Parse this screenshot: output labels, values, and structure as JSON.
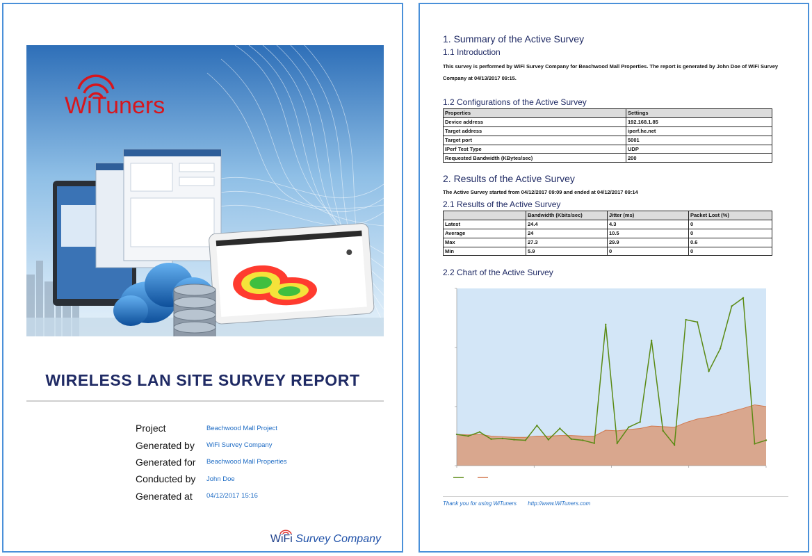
{
  "cover": {
    "brand": "WiTuners",
    "title": "WIRELESS LAN SITE SURVEY REPORT",
    "meta": [
      {
        "label": "Project",
        "value": "Beachwood Mall Project"
      },
      {
        "label": "Generated by",
        "value": "WiFi Survey Company"
      },
      {
        "label": "Generated for",
        "value": "Beachwood Mall Properties"
      },
      {
        "label": "Conducted by",
        "value": "John Doe"
      },
      {
        "label": "Generated at",
        "value": "04/12/2017 15:16"
      }
    ],
    "company_wifi": "WiFi",
    "company_name": "Survey Company"
  },
  "report": {
    "s1_title": "1. Summary of the Active Survey",
    "s1_1_title": "1.1 Introduction",
    "intro": "This survey is performed by WiFi Survey Company for Beachwood Mall Properties. The report is generated by John Doe of WiFi Survey Company at 04/13/2017 09:15.",
    "s1_2_title": "1.2 Configurations of the Active Survey",
    "config": {
      "headers": [
        "Properties",
        "Settings"
      ],
      "rows": [
        [
          "Device address",
          "192.168.1.85"
        ],
        [
          "Target address",
          "iperf.he.net"
        ],
        [
          "Target port",
          "5001"
        ],
        [
          "IPerf Test Type",
          "UDP"
        ],
        [
          "Requested Bandwidth (KBytes/sec)",
          "200"
        ]
      ]
    },
    "s2_title": "2. Results of the Active Survey",
    "s2_text": "The Active Survey started from 04/12/2017 09:09 and ended at 04/12/2017 09:14",
    "s2_1_title": "2.1 Results of the Active Survey",
    "results": {
      "headers": [
        "",
        "Bandwidth (Kbits/sec)",
        "Jitter (ms)",
        "Packet Lost (%)"
      ],
      "rows": [
        [
          "Latest",
          "24.4",
          "4.3",
          "0"
        ],
        [
          "Average",
          "24",
          "10.5",
          "0"
        ],
        [
          "Max",
          "27.3",
          "29.9",
          "0.6"
        ],
        [
          "Min",
          "5.9",
          "0",
          "0"
        ]
      ]
    },
    "s2_2_title": "2.2 Chart of the Active Survey",
    "footer_thanks": "Thank you for using WiTuners",
    "footer_url": "http://www.WiTuners.com"
  },
  "colors": {
    "heading": "#1f2a64",
    "link": "#1d6bc4",
    "page_border": "#4a90d9",
    "chart_bg": "#d3e6f7",
    "latest_line": "#5a8a14",
    "average_fill": "#d9a78e",
    "average_line": "#d2794f"
  },
  "chart_data": {
    "type": "line",
    "ylim": [
      0,
      30
    ],
    "series": [
      {
        "values": [
          5.3,
          5.0,
          5.7,
          4.5,
          4.6,
          4.4,
          4.3,
          6.8,
          4.4,
          6.3,
          4.5,
          4.3,
          3.8,
          23.9,
          3.8,
          6.5,
          7.4,
          21.2,
          5.9,
          3.5,
          24.7,
          24.3,
          16.0,
          19.8,
          27.0,
          28.4,
          3.7,
          4.3
        ]
      },
      {
        "values": [
          5.3,
          5.2,
          5.3,
          5.0,
          4.9,
          4.8,
          4.8,
          5.0,
          5.0,
          5.1,
          5.1,
          5.0,
          5.0,
          6.0,
          5.9,
          6.1,
          6.3,
          6.7,
          6.6,
          6.5,
          7.3,
          7.9,
          8.2,
          8.6,
          9.2,
          9.7,
          10.3,
          10.0
        ]
      }
    ]
  }
}
